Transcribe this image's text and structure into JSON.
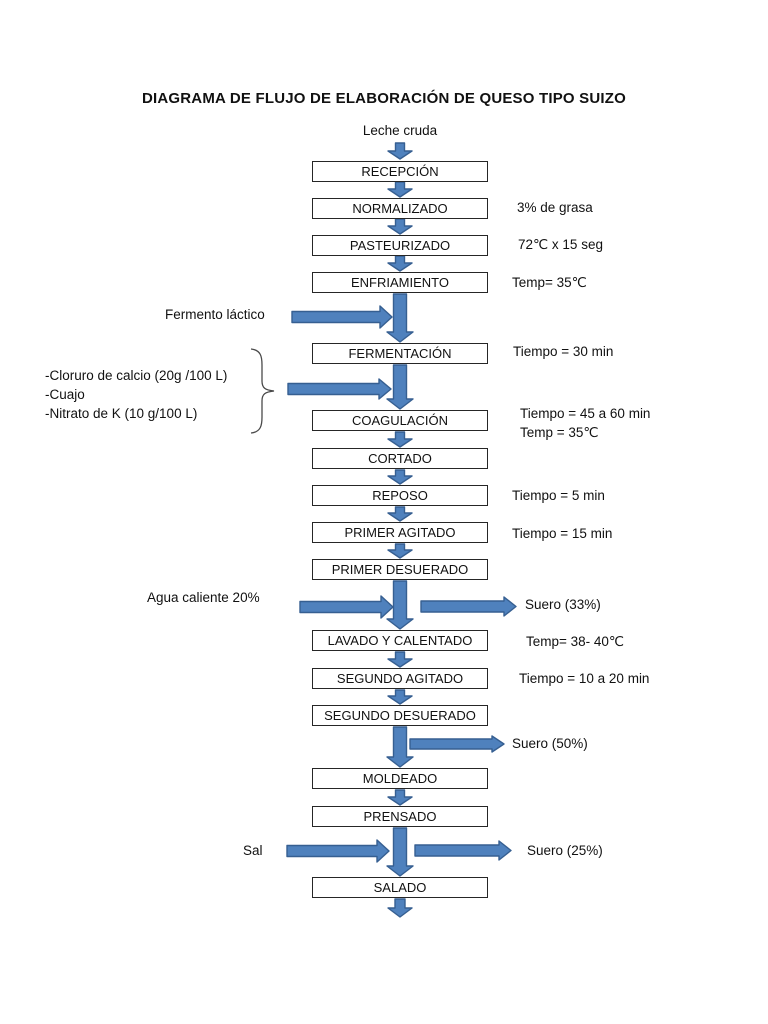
{
  "page": {
    "title": "DIAGRAMA DE FLUJO DE ELABORACIÓN DE QUESO TIPO SUIZO"
  },
  "colors": {
    "arrow_fill": "#4f81bd",
    "arrow_stroke": "#365f91",
    "box_border": "#262626",
    "brace": "#4a4a4a"
  },
  "start": {
    "label": "Leche cruda"
  },
  "steps": [
    {
      "label": "RECEPCIÓN"
    },
    {
      "label": "NORMALIZADO",
      "note": "3% de grasa"
    },
    {
      "label": "PASTEURIZADO",
      "note": "72℃ x 15 seg"
    },
    {
      "label": "ENFRIAMIENTO",
      "note": "Temp= 35℃"
    },
    {
      "label": "FERMENTACIÓN",
      "note": "Tiempo = 30 min"
    },
    {
      "label": "COAGULACIÓN",
      "note": "Tiempo = 45 a 60 min",
      "note2": "Temp = 35℃"
    },
    {
      "label": "CORTADO"
    },
    {
      "label": "REPOSO",
      "note": "Tiempo = 5 min"
    },
    {
      "label": "PRIMER AGITADO",
      "note": "Tiempo = 15 min"
    },
    {
      "label": "PRIMER DESUERADO"
    },
    {
      "label": "LAVADO Y CALENTADO",
      "note": "Temp= 38- 40℃"
    },
    {
      "label": "SEGUNDO AGITADO",
      "note": "Tiempo = 10 a 20 min"
    },
    {
      "label": "SEGUNDO DESUERADO"
    },
    {
      "label": "MOLDEADO"
    },
    {
      "label": "PRENSADO"
    },
    {
      "label": "SALADO"
    }
  ],
  "inputs": {
    "fermento": {
      "label": "Fermento láctico"
    },
    "aditivos": {
      "lines": [
        "-Cloruro de calcio (20g /100 L)",
        "-Cuajo",
        "-Nitrato de K (10 g/100 L)"
      ]
    },
    "agua": {
      "label": "Agua caliente 20%"
    },
    "sal": {
      "label": "Sal"
    }
  },
  "outputs": {
    "suero_33": {
      "label": "Suero (33%)"
    },
    "suero_50": {
      "label": "Suero (50%)"
    },
    "suero_25": {
      "label": "Suero (25%)"
    }
  }
}
